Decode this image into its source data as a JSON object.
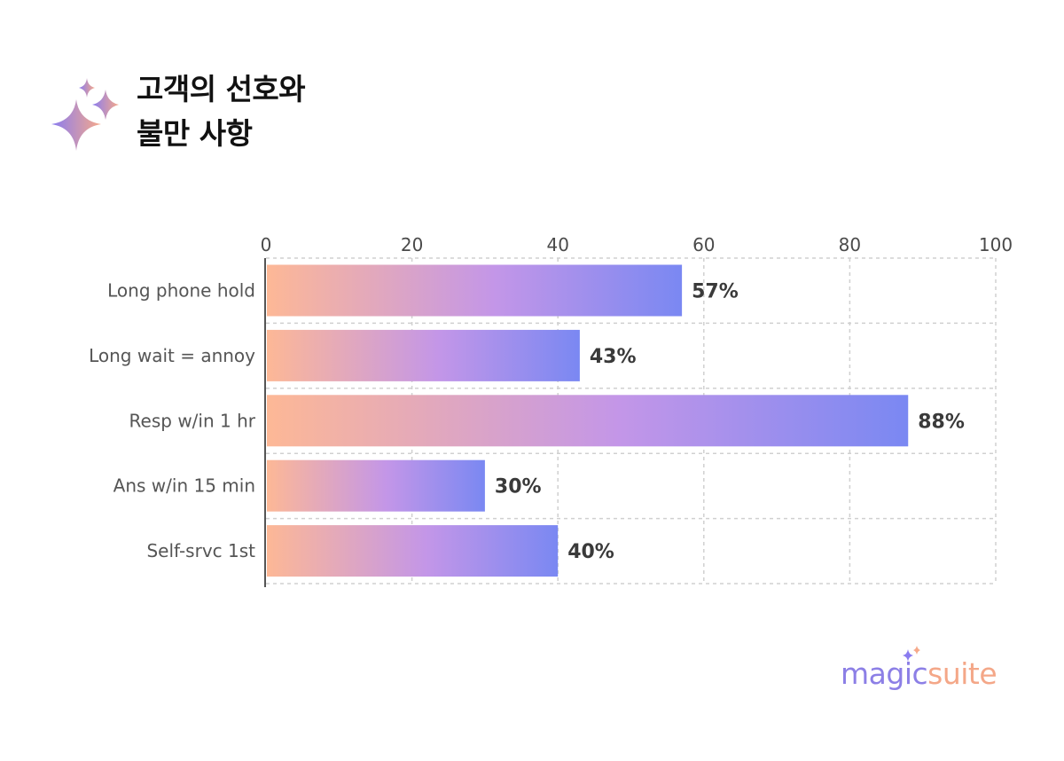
{
  "title": {
    "line1": "고객의 선호와",
    "line2": "불만 사항"
  },
  "logo": {
    "part1": "magic",
    "part2": "suite"
  },
  "colors": {
    "bar_start": "#fdb896",
    "bar_mid": "#c396e8",
    "bar_end": "#7a88f2",
    "grid": "#d0d0d0",
    "axis": "#555555"
  },
  "chart_data": {
    "type": "bar",
    "orientation": "horizontal",
    "categories": [
      "Long phone hold",
      "Long wait = annoy",
      "Resp w/in 1 hr",
      "Ans w/in 15 min",
      "Self-srvc 1st"
    ],
    "values": [
      57,
      43,
      88,
      30,
      40
    ],
    "value_labels": [
      "57%",
      "43%",
      "88%",
      "30%",
      "40%"
    ],
    "xlim": [
      0,
      100
    ],
    "xticks": [
      0,
      20,
      40,
      60,
      80,
      100
    ],
    "x_axis_position": "top",
    "grid": true
  }
}
